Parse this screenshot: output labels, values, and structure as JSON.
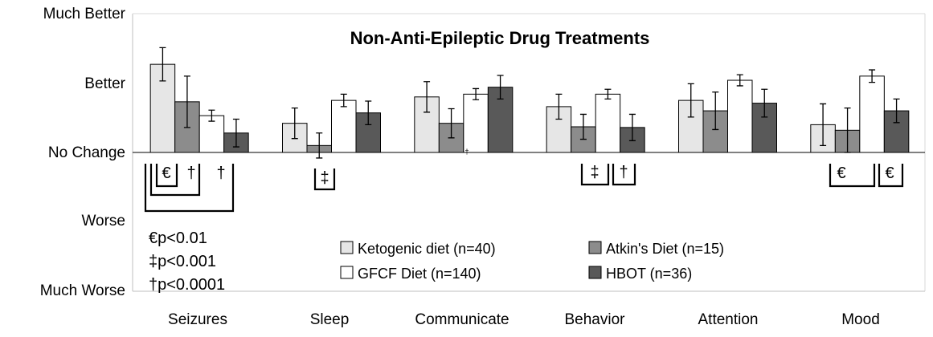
{
  "chart_data": {
    "type": "bar",
    "title": "Non-Anti-Epileptic Drug Treatments",
    "ylabel_ticks": [
      "Much Better",
      "Better",
      "No Change",
      "Worse",
      "Much Worse"
    ],
    "ylim": [
      -2,
      2
    ],
    "categories": [
      "Seizures",
      "Sleep",
      "Communicate",
      "Behavior",
      "Attention",
      "Mood"
    ],
    "series": [
      {
        "name": "Ketogenic diet (n=40)",
        "color": "#e6e6e6",
        "values": [
          1.27,
          0.42,
          0.8,
          0.66,
          0.75,
          0.4
        ],
        "errors": [
          0.24,
          0.22,
          0.22,
          0.18,
          0.24,
          0.3
        ]
      },
      {
        "name": "Atkin's Diet (n=15)",
        "color": "#8c8c8c",
        "values": [
          0.73,
          0.1,
          0.42,
          0.37,
          0.6,
          0.32
        ],
        "errors": [
          0.37,
          0.18,
          0.21,
          0.18,
          0.27,
          0.32
        ]
      },
      {
        "name": "GFCF Diet (n=140)",
        "color": "#ffffff",
        "values": [
          0.53,
          0.75,
          0.84,
          0.84,
          1.04,
          1.1
        ],
        "errors": [
          0.08,
          0.09,
          0.08,
          0.07,
          0.08,
          0.09
        ]
      },
      {
        "name": "HBOT (n=36)",
        "color": "#595959",
        "values": [
          0.28,
          0.57,
          0.94,
          0.36,
          0.71,
          0.6
        ],
        "errors": [
          0.2,
          0.17,
          0.17,
          0.19,
          0.2,
          0.17
        ]
      }
    ],
    "annotations": [
      {
        "category": "Seizures",
        "symbols": [
          "€",
          "†",
          "†"
        ]
      },
      {
        "category": "Sleep",
        "symbols": [
          "‡"
        ]
      },
      {
        "category": "Communicate",
        "symbols": [
          "†"
        ]
      },
      {
        "category": "Behavior",
        "symbols": [
          "‡",
          "†"
        ]
      },
      {
        "category": "Mood",
        "symbols": [
          "€",
          "€"
        ]
      }
    ],
    "footnotes": [
      "€p<0.01",
      "‡p<0.001",
      "†p<0.0001"
    ]
  }
}
